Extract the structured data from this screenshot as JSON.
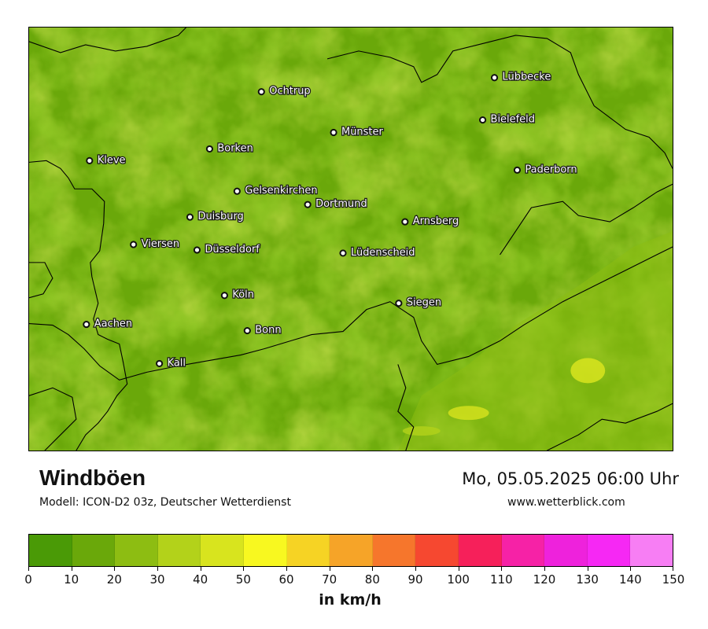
{
  "title": "Windböen",
  "model": "Modell: ICON-D2 03z, Deutscher Wetterdienst",
  "datetime": "Mo, 05.05.2025 06:00 Uhr",
  "website": "www.wetterblick.com",
  "legend": {
    "unit": "in km/h",
    "ticks": [
      "0",
      "10",
      "20",
      "30",
      "40",
      "50",
      "60",
      "70",
      "80",
      "90",
      "100",
      "110",
      "120",
      "130",
      "140",
      "150"
    ],
    "colors": [
      "#4a9a06",
      "#6aa80a",
      "#8dbd12",
      "#b3d21a",
      "#d8e41e",
      "#f8f820",
      "#f6d324",
      "#f6a428",
      "#f6762c",
      "#f64830",
      "#f6205a",
      "#f622a6",
      "#ee22dc",
      "#f628f4",
      "#f77ef4"
    ]
  },
  "map_colors": {
    "base": "#6aa80a",
    "dark": "#4a9a06",
    "light": "#8dbd12",
    "yellow": "#d8e41e",
    "border": "#000000"
  },
  "cities": [
    {
      "name": "Ochtrup",
      "icon": "city-marker-icon"
    },
    {
      "name": "Lübbecke",
      "icon": "city-marker-icon"
    },
    {
      "name": "Bielefeld",
      "icon": "city-marker-icon"
    },
    {
      "name": "Münster",
      "icon": "city-marker-icon"
    },
    {
      "name": "Borken",
      "icon": "city-marker-icon"
    },
    {
      "name": "Kleve",
      "icon": "city-marker-icon"
    },
    {
      "name": "Paderborn",
      "icon": "city-marker-icon"
    },
    {
      "name": "Gelsenkirchen",
      "icon": "city-marker-icon"
    },
    {
      "name": "Dortmund",
      "icon": "city-marker-icon"
    },
    {
      "name": "Duisburg",
      "icon": "city-marker-icon"
    },
    {
      "name": "Arnsberg",
      "icon": "city-marker-icon"
    },
    {
      "name": "Viersen",
      "icon": "city-marker-icon"
    },
    {
      "name": "Düsseldorf",
      "icon": "city-marker-icon"
    },
    {
      "name": "Lüdenscheid",
      "icon": "city-marker-icon"
    },
    {
      "name": "Köln",
      "icon": "city-marker-icon"
    },
    {
      "name": "Siegen",
      "icon": "city-marker-icon"
    },
    {
      "name": "Aachen",
      "icon": "city-marker-icon"
    },
    {
      "name": "Bonn",
      "icon": "city-marker-icon"
    },
    {
      "name": "Kall",
      "icon": "city-marker-icon"
    }
  ]
}
